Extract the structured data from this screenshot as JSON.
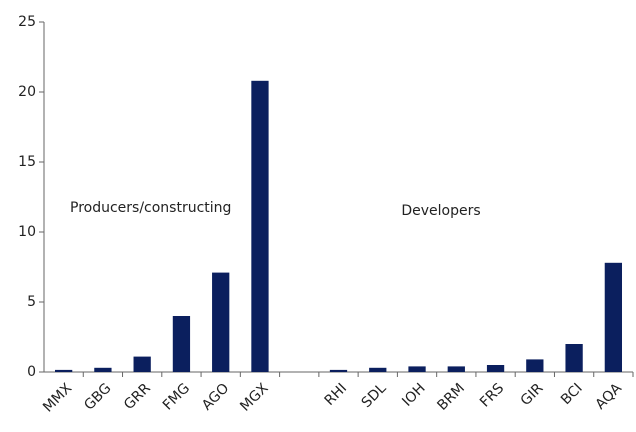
{
  "chart_data": {
    "type": "bar",
    "categories": [
      "MMX",
      "GBG",
      "GRR",
      "FMG",
      "AGO",
      "MGX",
      null,
      "RHI",
      "SDL",
      "IOH",
      "BRM",
      "FRS",
      "GIR",
      "BCI",
      "AQA"
    ],
    "values": [
      0.15,
      0.3,
      1.1,
      4.0,
      7.1,
      20.8,
      null,
      0.15,
      0.3,
      0.4,
      0.4,
      0.5,
      0.9,
      2.0,
      7.8
    ],
    "color": "#0b1f5e",
    "ylim": [
      0,
      25
    ],
    "yticks": [
      0,
      5,
      10,
      15,
      20,
      25
    ],
    "grid": false,
    "annotations": [
      "Producers/constructing",
      "Developers"
    ]
  }
}
